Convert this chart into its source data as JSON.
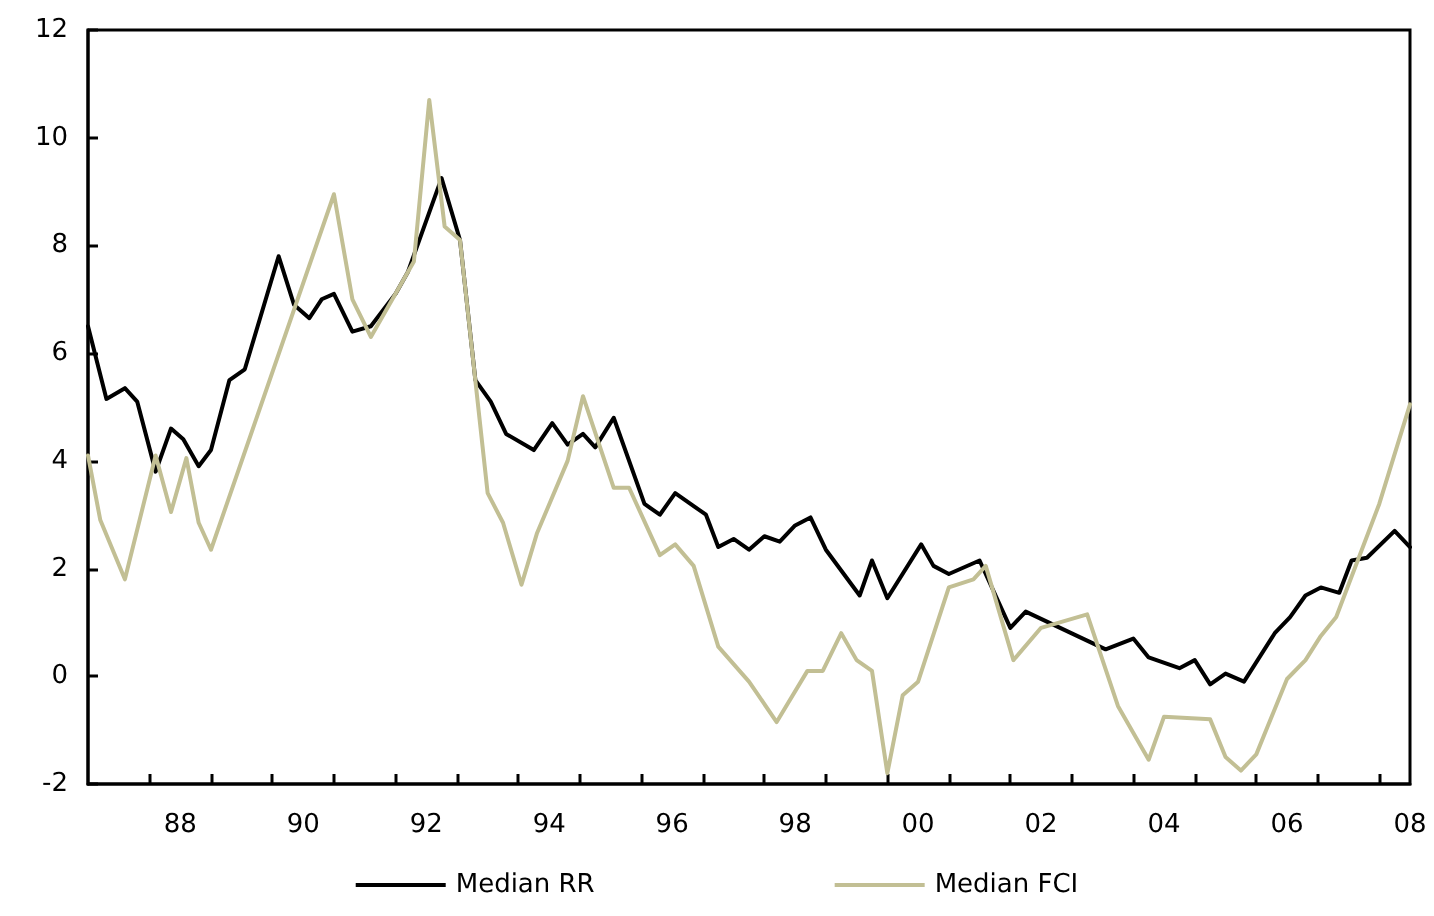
{
  "chart_data": {
    "type": "line",
    "marker": "none",
    "grid": false,
    "legend": "bottom",
    "xlim": [
      1986.5,
      2008
    ],
    "ylim": [
      -2,
      12
    ],
    "yticks": [
      -2,
      0,
      2,
      4,
      6,
      8,
      10,
      12
    ],
    "xticks": [
      {
        "value": 1987.5,
        "label": null
      },
      {
        "value": 1988,
        "label": "88"
      },
      {
        "value": 1988.5,
        "label": null
      },
      {
        "value": 1989.5,
        "label": null
      },
      {
        "value": 1990,
        "label": "90"
      },
      {
        "value": 1990.5,
        "label": null
      },
      {
        "value": 1991.5,
        "label": null
      },
      {
        "value": 1992,
        "label": "92"
      },
      {
        "value": 1992.5,
        "label": null
      },
      {
        "value": 1993.5,
        "label": null
      },
      {
        "value": 1994,
        "label": "94"
      },
      {
        "value": 1994.5,
        "label": null
      },
      {
        "value": 1995.5,
        "label": null
      },
      {
        "value": 1996,
        "label": "96"
      },
      {
        "value": 1996.5,
        "label": null
      },
      {
        "value": 1997.5,
        "label": null
      },
      {
        "value": 1998,
        "label": "98"
      },
      {
        "value": 1998.5,
        "label": null
      },
      {
        "value": 1999.5,
        "label": null
      },
      {
        "value": 2000,
        "label": "00"
      },
      {
        "value": 2000.5,
        "label": null
      },
      {
        "value": 2001.5,
        "label": null
      },
      {
        "value": 2002,
        "label": "02"
      },
      {
        "value": 2002.5,
        "label": null
      },
      {
        "value": 2003.5,
        "label": null
      },
      {
        "value": 2004,
        "label": "04"
      },
      {
        "value": 2004.5,
        "label": null
      },
      {
        "value": 2005.5,
        "label": null
      },
      {
        "value": 2006,
        "label": "06"
      },
      {
        "value": 2006.5,
        "label": null
      },
      {
        "value": 2007.5,
        "label": null
      },
      {
        "value": 2008,
        "label": "08"
      }
    ],
    "series": [
      {
        "name": "Median RR",
        "color": "#000000",
        "x": [
          1986.5,
          1986.8,
          1987.1,
          1987.3,
          1987.6,
          1987.85,
          1988.05,
          1988.3,
          1988.5,
          1988.8,
          1989.05,
          1989.6,
          1989.85,
          1990.1,
          1990.3,
          1990.5,
          1990.8,
          1991.1,
          1991.5,
          1991.7,
          1992.25,
          1992.55,
          1992.8,
          1993.05,
          1993.3,
          1993.75,
          1994.05,
          1994.3,
          1994.55,
          1994.75,
          1995.05,
          1995.55,
          1995.8,
          1996.05,
          1996.55,
          1996.75,
          1997.0,
          1997.25,
          1997.5,
          1997.75,
          1998.0,
          1998.25,
          1998.5,
          1999.05,
          1999.25,
          1999.5,
          2000.05,
          2000.25,
          2000.5,
          2001.0,
          2001.5,
          2001.75,
          2003.05,
          2003.5,
          2003.75,
          2004.25,
          2004.5,
          2004.75,
          2005.0,
          2005.3,
          2005.8,
          2006.05,
          2006.3,
          2006.55,
          2006.85,
          2007.05,
          2007.3,
          2007.75,
          2008.0
        ],
        "values": [
          6.5,
          5.15,
          5.35,
          5.1,
          3.8,
          4.6,
          4.4,
          3.9,
          4.2,
          5.5,
          5.7,
          7.8,
          6.9,
          6.65,
          7.0,
          7.1,
          6.4,
          6.5,
          7.1,
          7.5,
          9.25,
          8.1,
          5.5,
          5.1,
          4.5,
          4.2,
          4.7,
          4.3,
          4.5,
          4.25,
          4.8,
          3.2,
          3.0,
          3.4,
          3.0,
          2.4,
          2.55,
          2.35,
          2.6,
          2.5,
          2.8,
          2.95,
          2.35,
          1.5,
          2.15,
          1.45,
          2.45,
          2.05,
          1.9,
          2.15,
          0.9,
          1.2,
          0.5,
          0.7,
          0.35,
          0.15,
          0.3,
          -0.15,
          0.05,
          -0.1,
          0.8,
          1.1,
          1.5,
          1.65,
          1.55,
          2.15,
          2.2,
          2.7,
          2.4
        ]
      },
      {
        "name": "Median FCI",
        "color": "#c2bf94",
        "x": [
          1986.5,
          1986.7,
          1987.1,
          1987.6,
          1987.85,
          1988.1,
          1988.3,
          1988.5,
          1990.5,
          1990.8,
          1991.1,
          1991.8,
          1992.05,
          1992.3,
          1992.55,
          1993.0,
          1993.25,
          1993.55,
          1993.8,
          1994.3,
          1994.55,
          1995.05,
          1995.3,
          1995.8,
          1996.05,
          1996.35,
          1996.75,
          1997.25,
          1997.7,
          1998.2,
          1998.45,
          1998.75,
          1999.0,
          1999.25,
          1999.5,
          1999.75,
          2000.0,
          2000.5,
          2000.9,
          2001.1,
          2001.55,
          2002.0,
          2002.75,
          2003.25,
          2003.75,
          2004.0,
          2004.75,
          2005.0,
          2005.25,
          2005.5,
          2006.0,
          2006.3,
          2006.55,
          2006.8,
          2007.5,
          2008.0
        ],
        "values": [
          4.1,
          2.9,
          1.8,
          4.1,
          3.05,
          4.05,
          2.85,
          2.35,
          8.95,
          7.0,
          6.3,
          7.7,
          10.7,
          8.35,
          8.1,
          3.4,
          2.85,
          1.7,
          2.65,
          4.0,
          5.2,
          3.5,
          3.5,
          2.25,
          2.45,
          2.05,
          0.55,
          -0.1,
          -0.85,
          0.1,
          0.1,
          0.8,
          0.3,
          0.1,
          -1.8,
          -0.35,
          -0.1,
          1.65,
          1.8,
          2.05,
          0.3,
          0.9,
          1.15,
          -0.55,
          -1.55,
          -0.75,
          -0.8,
          -1.5,
          -1.75,
          -1.45,
          -0.05,
          0.3,
          0.75,
          1.1,
          3.2,
          5.05
        ]
      }
    ]
  }
}
